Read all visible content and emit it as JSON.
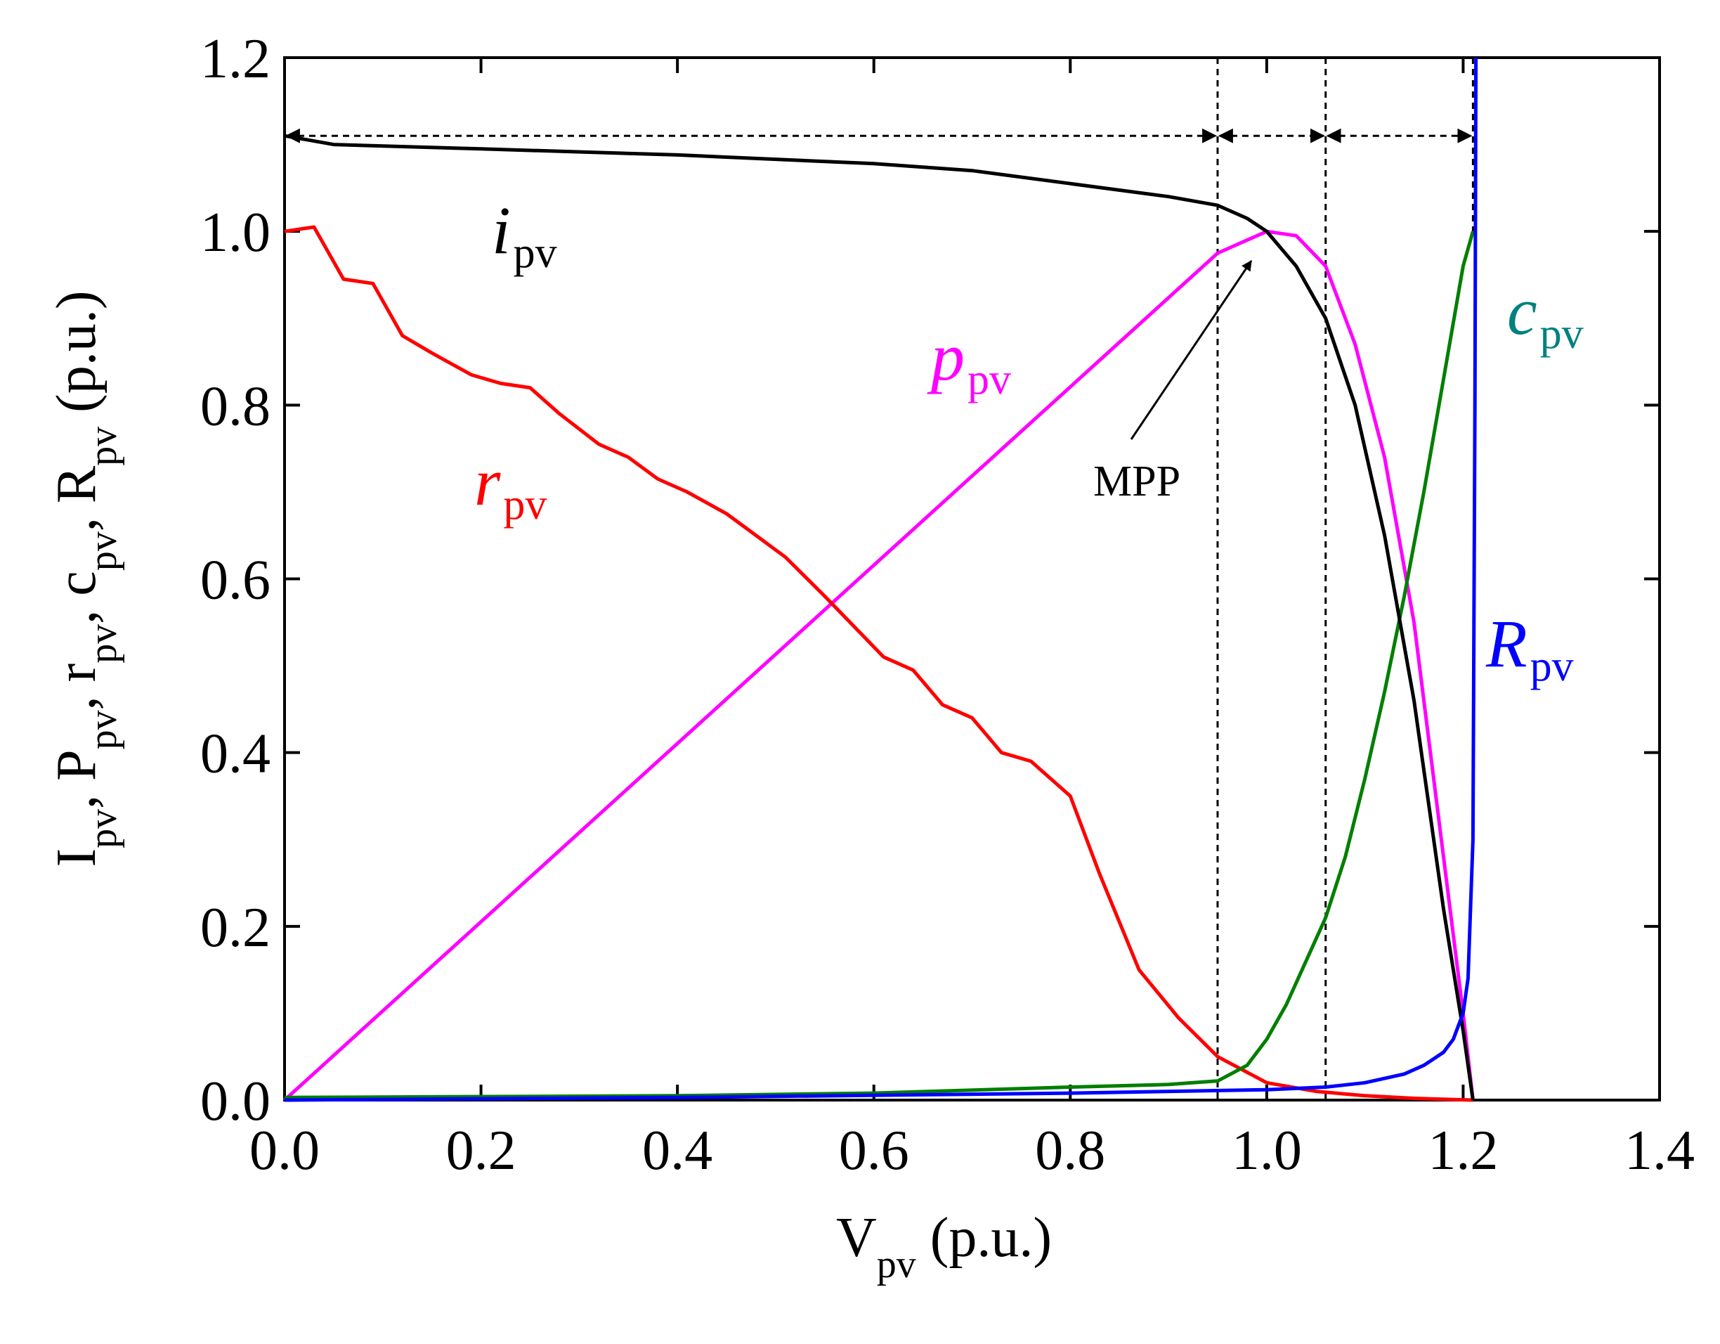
{
  "chart_data": {
    "type": "line",
    "xlabel": "V",
    "xlabel_sub": "pv",
    "xlabel_unit": "(p.u.)",
    "ylabel_parts": [
      {
        "main": "I",
        "sub": "pv"
      },
      {
        "main": "P",
        "sub": "pv"
      },
      {
        "main": "r",
        "sub": "pv"
      },
      {
        "main": "c",
        "sub": "pv"
      },
      {
        "main": "R",
        "sub": "pv"
      }
    ],
    "ylabel_unit": "(p.u.)",
    "xlim": [
      0,
      1.4
    ],
    "ylim": [
      0,
      1.2
    ],
    "xticks": [
      0.0,
      0.2,
      0.4,
      0.6,
      0.8,
      1.0,
      1.2,
      1.4
    ],
    "xtick_labels": [
      "0.0",
      "0.2",
      "0.4",
      "0.6",
      "0.8",
      "1.0",
      "1.2",
      "1.4"
    ],
    "yticks": [
      0.0,
      0.2,
      0.4,
      0.6,
      0.8,
      1.0,
      1.2
    ],
    "ytick_labels": [
      "0.0",
      "0.2",
      "0.4",
      "0.6",
      "0.8",
      "1.0",
      "1.2"
    ],
    "grid": false,
    "colors": {
      "i_pv": "#000000",
      "p_pv": "#ff00ff",
      "r_pv": "#ff0000",
      "c_pv": "#007f00",
      "R_pv": "#0000ff",
      "c_pv_label": "#008080"
    },
    "series": [
      {
        "key": "i_pv",
        "name": "i",
        "sub": "pv",
        "x": [
          0,
          0.05,
          0.2,
          0.4,
          0.6,
          0.7,
          0.8,
          0.9,
          0.95,
          0.98,
          1.0,
          1.03,
          1.06,
          1.09,
          1.12,
          1.15,
          1.18,
          1.2,
          1.21
        ],
        "y": [
          1.11,
          1.1,
          1.095,
          1.088,
          1.078,
          1.07,
          1.055,
          1.04,
          1.03,
          1.015,
          1.0,
          0.96,
          0.9,
          0.8,
          0.65,
          0.46,
          0.22,
          0.08,
          0.0
        ]
      },
      {
        "key": "p_pv",
        "name": "p",
        "sub": "pv",
        "x": [
          0,
          0.95,
          1.0,
          1.03,
          1.06,
          1.09,
          1.12,
          1.15,
          1.18,
          1.2,
          1.21
        ],
        "y": [
          0,
          0.975,
          1.0,
          0.995,
          0.96,
          0.87,
          0.74,
          0.55,
          0.28,
          0.1,
          0.0
        ]
      },
      {
        "key": "r_pv",
        "name": "r",
        "sub": "pv",
        "x": [
          0,
          0.03,
          0.06,
          0.09,
          0.12,
          0.15,
          0.19,
          0.22,
          0.25,
          0.28,
          0.32,
          0.35,
          0.38,
          0.41,
          0.45,
          0.48,
          0.51,
          0.55,
          0.58,
          0.61,
          0.64,
          0.67,
          0.7,
          0.73,
          0.76,
          0.8,
          0.83,
          0.87,
          0.91,
          0.95,
          1.0,
          1.05,
          1.1,
          1.15,
          1.21
        ],
        "y": [
          1.0,
          1.005,
          0.945,
          0.94,
          0.88,
          0.86,
          0.835,
          0.825,
          0.82,
          0.79,
          0.755,
          0.74,
          0.715,
          0.7,
          0.675,
          0.65,
          0.625,
          0.58,
          0.545,
          0.51,
          0.495,
          0.455,
          0.44,
          0.4,
          0.39,
          0.35,
          0.26,
          0.15,
          0.095,
          0.05,
          0.02,
          0.01,
          0.005,
          0.002,
          0.0
        ]
      },
      {
        "key": "c_pv",
        "name": "c",
        "sub": "pv",
        "x": [
          0,
          0.4,
          0.6,
          0.8,
          0.9,
          0.95,
          0.98,
          1.0,
          1.02,
          1.04,
          1.06,
          1.08,
          1.1,
          1.12,
          1.14,
          1.16,
          1.18,
          1.2,
          1.21
        ],
        "y": [
          0.003,
          0.005,
          0.008,
          0.015,
          0.018,
          0.022,
          0.04,
          0.07,
          0.11,
          0.16,
          0.21,
          0.28,
          0.37,
          0.47,
          0.58,
          0.7,
          0.83,
          0.96,
          1.0
        ]
      },
      {
        "key": "R_pv",
        "name": "R",
        "sub": "pv",
        "x": [
          0,
          0.4,
          0.8,
          1.0,
          1.06,
          1.1,
          1.14,
          1.16,
          1.18,
          1.19,
          1.2,
          1.205,
          1.21,
          1.212,
          1.213
        ],
        "y": [
          0.0,
          0.003,
          0.008,
          0.012,
          0.015,
          0.02,
          0.03,
          0.04,
          0.055,
          0.07,
          0.1,
          0.14,
          0.3,
          0.8,
          1.2
        ]
      }
    ],
    "series_labels": [
      {
        "key": "i_pv",
        "main": "i",
        "sub": "pv"
      },
      {
        "key": "p_pv",
        "main": "p",
        "sub": "pv"
      },
      {
        "key": "r_pv",
        "main": "r",
        "sub": "pv"
      },
      {
        "key": "c_pv",
        "main": "c",
        "sub": "pv"
      },
      {
        "key": "R_pv",
        "main": "R",
        "sub": "pv"
      }
    ],
    "annotations": {
      "mpp_label": "MPP",
      "mpp_point": {
        "x": 1.0,
        "y": 1.0
      },
      "vertical_dashed_x": [
        0.95,
        1.06
      ],
      "interval_arrows_y": 1.11,
      "interval_bounds_x": [
        0.0,
        0.95,
        1.06,
        1.21
      ]
    }
  }
}
